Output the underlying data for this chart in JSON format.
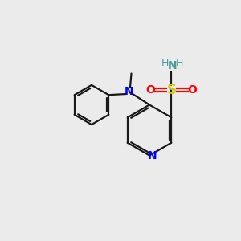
{
  "bg_color": "#ebebeb",
  "bond_color": "#1a1a1a",
  "N_color": "#0000ff",
  "S_color": "#cccc00",
  "O_color": "#ff0000",
  "H_color": "#4a9a9a",
  "line_width": 1.6,
  "font_size": 10,
  "figsize": [
    3.0,
    3.0
  ],
  "dpi": 100,
  "xlim": [
    0,
    10
  ],
  "ylim": [
    0,
    10
  ]
}
